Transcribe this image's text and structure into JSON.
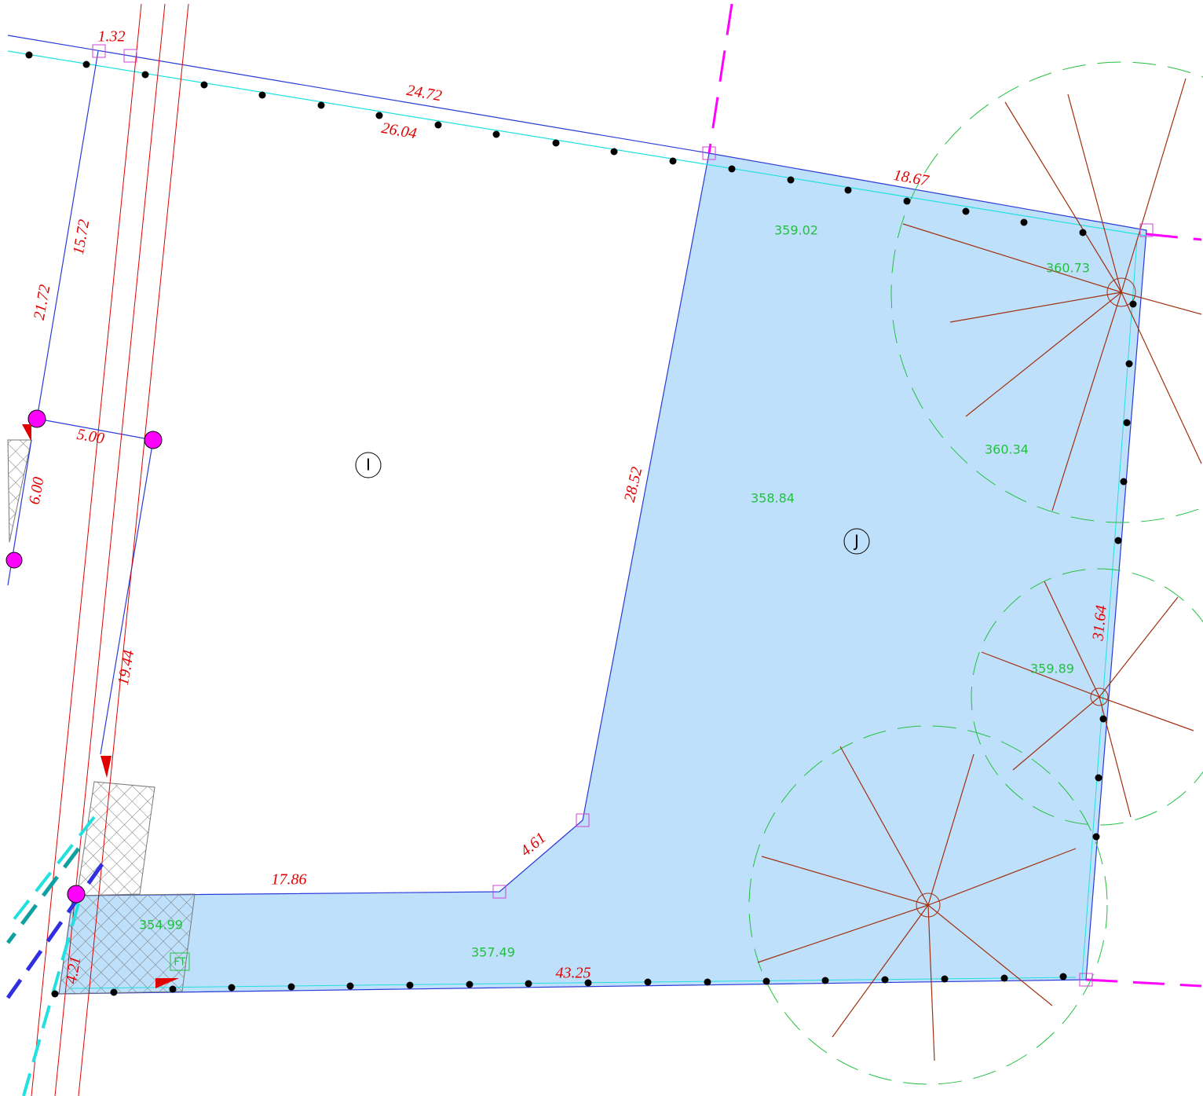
{
  "dimensions": [
    "1.32",
    "24.72",
    "26.04",
    "18.67",
    "15.72",
    "21.72",
    "5.00",
    "6.00",
    "19.44",
    "28.52",
    "4.61",
    "17.86",
    "43.25",
    "31.64",
    "4.21"
  ],
  "elevations": [
    "359.02",
    "360.73",
    "360.34",
    "358.84",
    "359.89",
    "354.99",
    "357.49"
  ],
  "parcels": [
    "I",
    "J"
  ],
  "symbol_label": "FT"
}
